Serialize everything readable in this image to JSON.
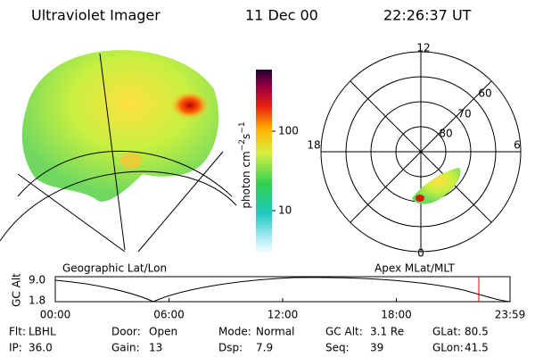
{
  "header": {
    "title": "Ultraviolet Imager",
    "date": "11 Dec 00",
    "time": "22:26:37 UT"
  },
  "colorbar": {
    "label": "photon cm",
    "exp1": "−2",
    "unit2": "s",
    "exp2": "−1",
    "ticks": [
      "100",
      "10"
    ]
  },
  "polar": {
    "hours": {
      "top": "12",
      "left": "18",
      "right": "6",
      "bottom": "0"
    },
    "latitudes": [
      "60",
      "70",
      "80"
    ]
  },
  "altitude_plot": {
    "left_title": "Geographic Lat/Lon",
    "right_title": "Apex MLat/MLT",
    "ylabel": "GC Alt",
    "yticks": [
      "9.0",
      "1.8"
    ],
    "xticks": [
      "00:00",
      "06:00",
      "12:00",
      "18:00",
      "23:59"
    ]
  },
  "status": [
    [
      [
        "Flt:",
        "LBHL"
      ],
      [
        "Door:",
        "Open"
      ],
      [
        "Mode:",
        "Normal"
      ],
      [
        "GC Alt:",
        "3.1 Re"
      ],
      [
        "GLat:",
        "80.5"
      ]
    ],
    [
      [
        "IP:",
        "36.0"
      ],
      [
        "Gain:",
        "13"
      ],
      [
        "Dsp:",
        "7.9"
      ],
      [
        "Seq:",
        "39"
      ],
      [
        "GLon:",
        "41.5"
      ]
    ]
  ]
}
